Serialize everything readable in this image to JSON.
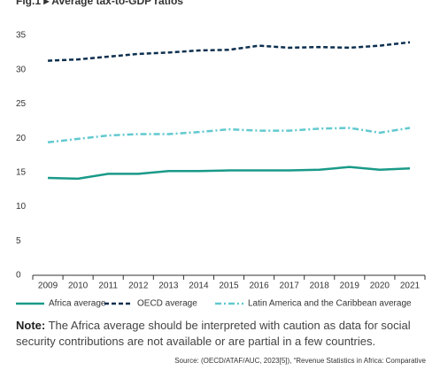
{
  "chart_data": {
    "type": "line",
    "title": "Fig.1 ▸ Average tax-to-GDP ratios",
    "categories": [
      "2009",
      "2010",
      "2011",
      "2012",
      "2013",
      "2014",
      "2015",
      "2016",
      "2017",
      "2018",
      "2019",
      "2020",
      "2021"
    ],
    "series": [
      {
        "name": "Africa average",
        "color": "#1a9a88",
        "dash": "solid",
        "values": [
          14.2,
          14.1,
          14.8,
          14.8,
          15.2,
          15.2,
          15.3,
          15.3,
          15.3,
          15.4,
          15.8,
          15.4,
          15.6
        ]
      },
      {
        "name": "OECD average",
        "color": "#0d2f4f",
        "dash": "dashed",
        "values": [
          31.3,
          31.5,
          31.9,
          32.3,
          32.5,
          32.8,
          32.9,
          33.5,
          33.2,
          33.3,
          33.2,
          33.5,
          34.0
        ]
      },
      {
        "name": "Latin America and the Caribbean average",
        "color": "#62c9cf",
        "dash": "dashdot",
        "values": [
          19.4,
          19.9,
          20.4,
          20.6,
          20.6,
          20.9,
          21.3,
          21.1,
          21.1,
          21.4,
          21.5,
          20.8,
          21.5
        ]
      }
    ],
    "ylim": [
      0,
      35
    ],
    "yticks": [
      0,
      5,
      10,
      15,
      20,
      25,
      30,
      35
    ],
    "grid": false,
    "legend": "bottom"
  },
  "note": {
    "label": "Note:",
    "text": "The Africa average should be interpreted with caution as data for social security contributions are not available or are partial in a few countries."
  },
  "source": "Source: (OECD/ATAF/AUC, 2023[5]), “Revenue Statistics in Africa: Comparative"
}
